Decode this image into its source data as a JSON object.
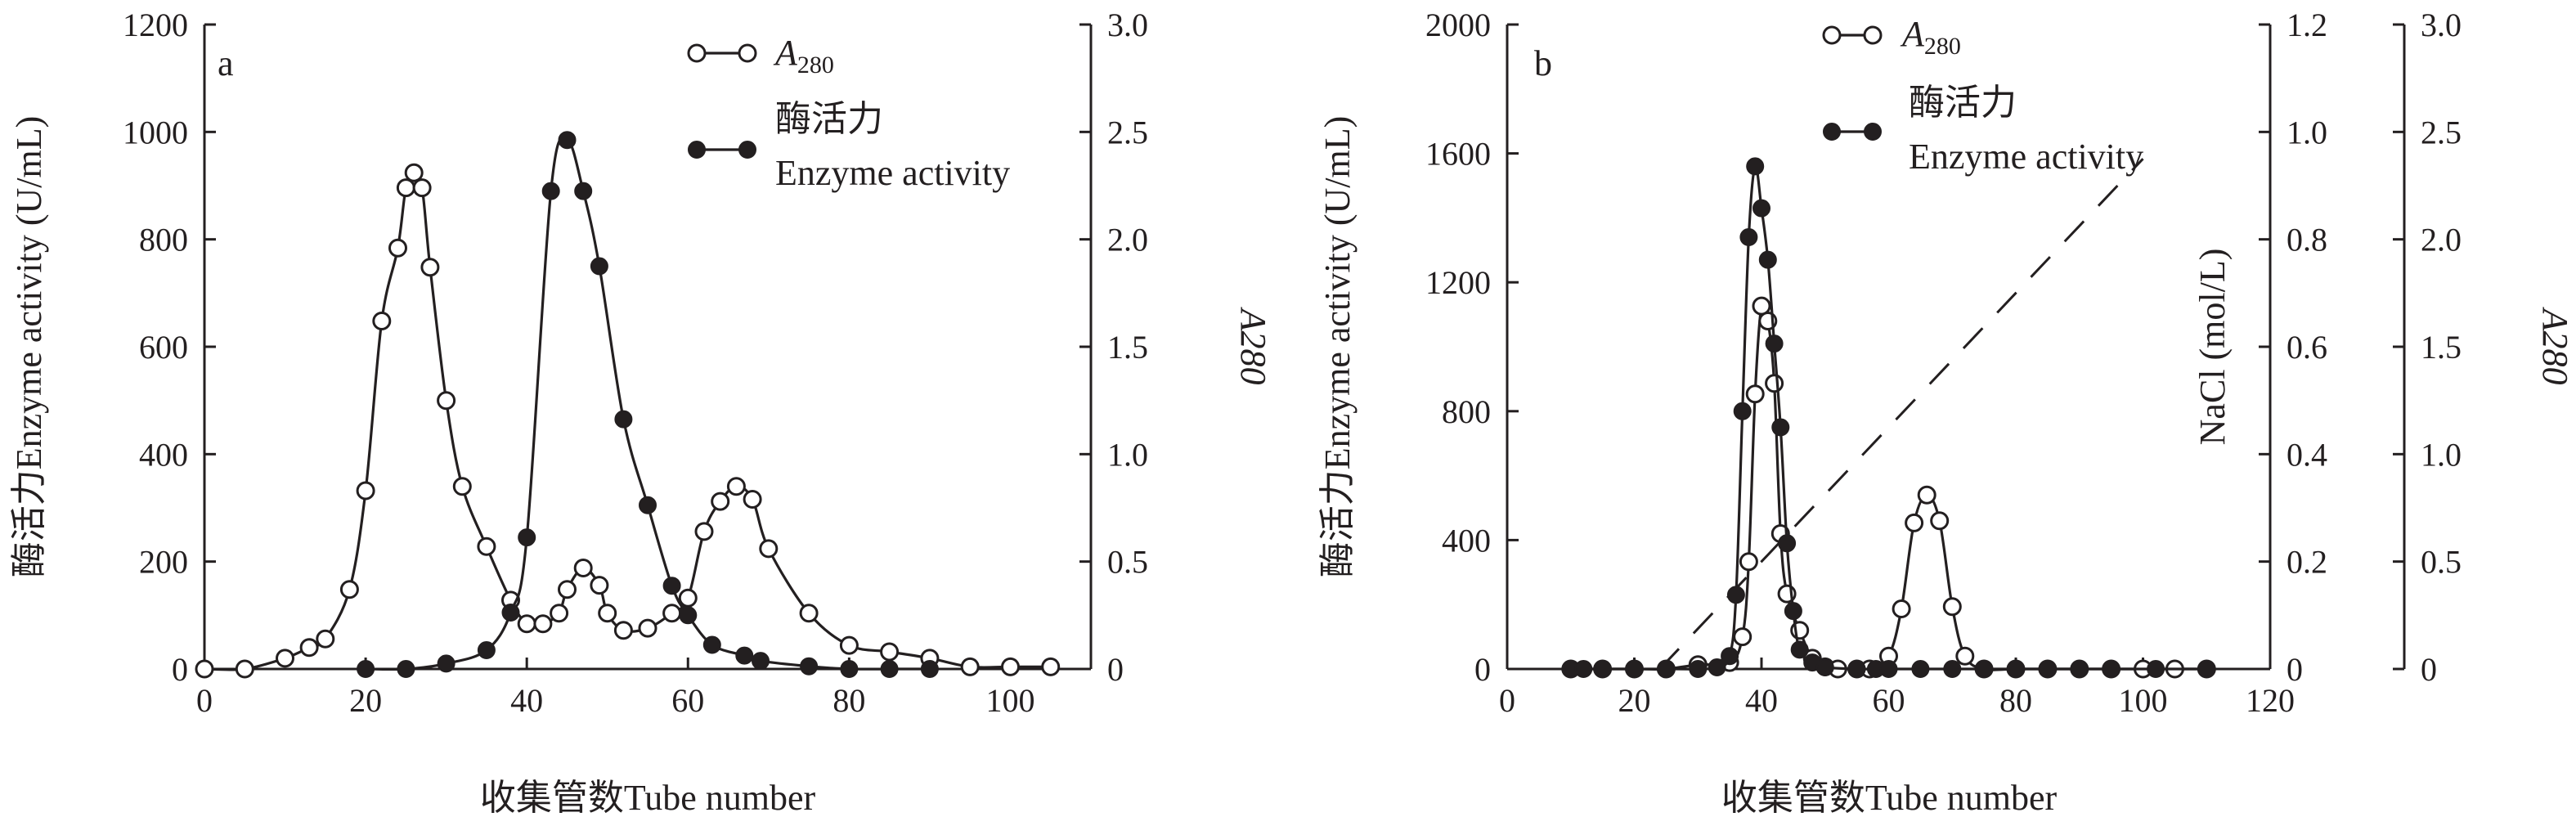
{
  "chart_data": [
    {
      "type": "line",
      "panel_label": "a",
      "xlabel": "收集管数Tube number",
      "ylabel_left": "酶活力Enzyme activity (U/mL)",
      "ylabel_right": "A280",
      "xlim": [
        0,
        110
      ],
      "ylim_left": [
        0,
        1200
      ],
      "ylim_right": [
        0,
        3.0
      ],
      "x_ticks": [
        "0",
        "20",
        "40",
        "60",
        "80",
        "100"
      ],
      "y_ticks_left": [
        "0",
        "200",
        "400",
        "600",
        "800",
        "1000",
        "1200"
      ],
      "y_ticks_right": [
        "0",
        "0.5",
        "1.0",
        "1.5",
        "2.0",
        "2.5",
        "3.0"
      ],
      "legend": [
        {
          "label": "A280",
          "marker": "open-circle"
        },
        {
          "label_cn": "酶活力",
          "label_en": "Enzyme activity",
          "marker": "filled-circle"
        }
      ],
      "series": [
        {
          "name": "A280",
          "axis": "right",
          "marker": "open-circle",
          "x": [
            0,
            5,
            10,
            13,
            15,
            18,
            20,
            22,
            24,
            25,
            26,
            27,
            28,
            30,
            32,
            35,
            38,
            40,
            42,
            44,
            45,
            47,
            49,
            50,
            52,
            55,
            58,
            60,
            62,
            64,
            66,
            68,
            70,
            75,
            80,
            85,
            90,
            95,
            100,
            105
          ],
          "y": [
            0.0,
            0.0,
            0.05,
            0.1,
            0.14,
            0.37,
            0.83,
            1.62,
            1.96,
            2.24,
            2.31,
            2.24,
            1.87,
            1.25,
            0.85,
            0.57,
            0.32,
            0.21,
            0.21,
            0.26,
            0.37,
            0.47,
            0.39,
            0.26,
            0.18,
            0.19,
            0.26,
            0.33,
            0.64,
            0.78,
            0.85,
            0.79,
            0.56,
            0.26,
            0.11,
            0.08,
            0.05,
            0.01,
            0.01,
            0.01
          ]
        },
        {
          "name": "酶活力 Enzyme activity",
          "axis": "left",
          "marker": "filled-circle",
          "x": [
            20,
            25,
            30,
            35,
            38,
            40,
            43,
            45,
            47,
            49,
            52,
            55,
            58,
            60,
            63,
            67,
            69,
            75,
            80,
            85,
            90
          ],
          "y": [
            0,
            0,
            10,
            35,
            105,
            245,
            890,
            985,
            890,
            750,
            465,
            305,
            155,
            100,
            45,
            25,
            15,
            5,
            0,
            0,
            0
          ]
        }
      ]
    },
    {
      "type": "line",
      "panel_label": "b",
      "xlabel": "收集管数Tube number",
      "ylabel_left": "酶活力Enzyme activity (U/mL)",
      "ylabel_mid": "NaCl (mol/L)",
      "ylabel_right": "A280",
      "xlim": [
        0,
        120
      ],
      "ylim_left": [
        0,
        2000
      ],
      "ylim_mid": [
        0,
        1.2
      ],
      "ylim_right": [
        0,
        3.0
      ],
      "x_ticks": [
        "0",
        "20",
        "40",
        "60",
        "80",
        "100",
        "120"
      ],
      "y_ticks_left": [
        "0",
        "400",
        "800",
        "1200",
        "1600",
        "2000"
      ],
      "y_ticks_mid": [
        "0",
        "0.2",
        "0.4",
        "0.6",
        "0.8",
        "1.0",
        "1.2"
      ],
      "y_ticks_right": [
        "0",
        "0.5",
        "1.0",
        "1.5",
        "2.0",
        "2.5",
        "3.0"
      ],
      "legend": [
        {
          "label": "A280",
          "marker": "open-circle"
        },
        {
          "label_cn": "酶活力",
          "label_en": "Enzyme activity",
          "marker": "filled-circle"
        }
      ],
      "series": [
        {
          "name": "A280",
          "axis": "right",
          "marker": "open-circle",
          "x": [
            10,
            15,
            20,
            25,
            30,
            35,
            37,
            38,
            39,
            40,
            41,
            42,
            43,
            44,
            46,
            48,
            50,
            52,
            55,
            57,
            60,
            62,
            64,
            66,
            68,
            70,
            72,
            75,
            80,
            85,
            90,
            95,
            100,
            105,
            110
          ],
          "y": [
            0.0,
            0.0,
            0.0,
            0.0,
            0.02,
            0.03,
            0.15,
            0.5,
            1.28,
            1.69,
            1.62,
            1.33,
            0.63,
            0.35,
            0.18,
            0.05,
            0.01,
            0.0,
            0.0,
            0.0,
            0.06,
            0.28,
            0.68,
            0.81,
            0.69,
            0.29,
            0.06,
            0.0,
            0.0,
            0.0,
            0.0,
            0.0,
            0.0,
            0.0,
            0.0
          ]
        },
        {
          "name": "酶活力 Enzyme activity",
          "axis": "left",
          "marker": "filled-circle",
          "x": [
            10,
            12,
            15,
            20,
            25,
            30,
            33,
            35,
            36,
            37,
            38,
            39,
            40,
            41,
            42,
            43,
            44,
            45,
            46,
            48,
            50,
            55,
            58,
            60,
            65,
            70,
            75,
            80,
            85,
            90,
            95,
            102,
            110
          ],
          "y": [
            0,
            0,
            0,
            0,
            0,
            0,
            5,
            40,
            230,
            800,
            1340,
            1560,
            1430,
            1270,
            1010,
            750,
            390,
            180,
            60,
            20,
            5,
            0,
            0,
            0,
            0,
            0,
            0,
            0,
            0,
            0,
            0,
            0,
            0
          ]
        },
        {
          "name": "NaCl",
          "axis": "mid",
          "style": "dashed",
          "x": [
            24,
            100
          ],
          "y": [
            0.0,
            0.95
          ]
        }
      ]
    }
  ]
}
